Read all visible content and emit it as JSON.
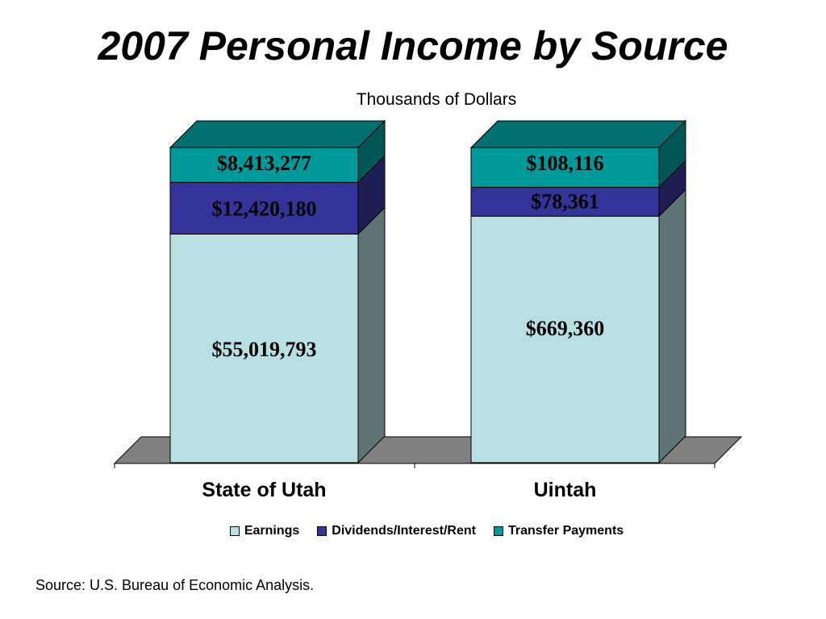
{
  "chart_data": {
    "type": "bar",
    "title": "2007 Personal Income by Source",
    "subtitle": "Thousands of Dollars",
    "stacked": true,
    "categories": [
      "State of Utah",
      "Uintah"
    ],
    "series": [
      {
        "name": "Earnings",
        "color": "#B8E0E2",
        "side_color": "#5E7373",
        "top_color": "#5E7373",
        "values": [
          55019793,
          669360
        ],
        "labels": [
          "$55,019,793",
          "$669,360"
        ]
      },
      {
        "name": "Dividends/Interest/Rent",
        "color": "#333399",
        "side_color": "#1E1E55",
        "top_color": "#1E1E55",
        "values": [
          12420180,
          78361
        ],
        "labels": [
          "$12,420,180",
          "$78,361"
        ]
      },
      {
        "name": "Transfer Payments",
        "color": "#009999",
        "side_color": "#005555",
        "top_color": "#007070",
        "values": [
          8413277,
          108116
        ],
        "labels": [
          "$8,413,277",
          "$108,116"
        ]
      }
    ],
    "normalized_100_percent": true,
    "legend_position": "bottom",
    "grid": false,
    "source": "Source: U.S. Bureau of Economic Analysis."
  }
}
